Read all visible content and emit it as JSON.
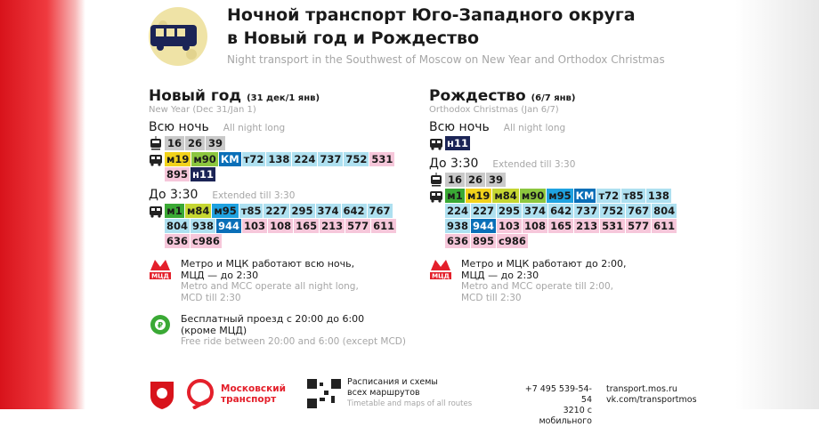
{
  "header": {
    "title_line1": "Ночной транспорт Юго-Западного округа",
    "title_line2": "в Новый год и Рождество",
    "subtitle": "Night transport in the Southwest of Moscow on New Year and Orthodox Christmas"
  },
  "columns": [
    {
      "title": "Новый год",
      "dates": "(31 дек/1 янв)",
      "title_en": "New Year (Dec 31/Jan 1)",
      "groups": [
        {
          "label": "Всю ночь",
          "label_en": "All night long",
          "rows": [
            {
              "mode": "tram",
              "lines": [
                [
                  {
                    "text": "16",
                    "color": "#c9c9c9"
                  },
                  {
                    "text": "26",
                    "color": "#c9c9c9"
                  },
                  {
                    "text": "39",
                    "color": "#c9c9c9"
                  }
                ]
              ]
            },
            {
              "mode": "bus",
              "lines": [
                [
                  {
                    "text": "м19",
                    "color": "#f2d21b"
                  },
                  {
                    "text": "м90",
                    "color": "#8cc63f"
                  },
                  {
                    "text": "КМ",
                    "color": "#0a6fb8"
                  },
                  {
                    "text": "т72",
                    "color": "#aee0f0"
                  },
                  {
                    "text": "138",
                    "color": "#aee0f0"
                  },
                  {
                    "text": "224",
                    "color": "#aee0f0"
                  },
                  {
                    "text": "737",
                    "color": "#aee0f0"
                  },
                  {
                    "text": "752",
                    "color": "#aee0f0"
                  },
                  {
                    "text": "531",
                    "color": "#f6c7da"
                  }
                ],
                [
                  {
                    "text": "895",
                    "color": "#f6c7da"
                  },
                  {
                    "text": "н11",
                    "color": "#1b2456"
                  }
                ]
              ]
            }
          ]
        },
        {
          "label": "До 3:30",
          "label_en": "Extended till 3:30",
          "rows": [
            {
              "mode": "bus",
              "lines": [
                [
                  {
                    "text": "м1",
                    "color": "#3aa935"
                  },
                  {
                    "text": "м84",
                    "color": "#c5d631"
                  },
                  {
                    "text": "м95",
                    "color": "#1fa2e0"
                  },
                  {
                    "text": "т85",
                    "color": "#aee0f0"
                  },
                  {
                    "text": "227",
                    "color": "#aee0f0"
                  },
                  {
                    "text": "295",
                    "color": "#aee0f0"
                  },
                  {
                    "text": "374",
                    "color": "#aee0f0"
                  },
                  {
                    "text": "642",
                    "color": "#aee0f0"
                  },
                  {
                    "text": "767",
                    "color": "#aee0f0"
                  }
                ],
                [
                  {
                    "text": "804",
                    "color": "#aee0f0"
                  },
                  {
                    "text": "938",
                    "color": "#aee0f0"
                  },
                  {
                    "text": "944",
                    "color": "#0a6fb8"
                  },
                  {
                    "text": "103",
                    "color": "#f6c7da"
                  },
                  {
                    "text": "108",
                    "color": "#f6c7da"
                  },
                  {
                    "text": "165",
                    "color": "#f6c7da"
                  },
                  {
                    "text": "213",
                    "color": "#f6c7da"
                  },
                  {
                    "text": "577",
                    "color": "#f6c7da"
                  },
                  {
                    "text": "611",
                    "color": "#f6c7da"
                  }
                ],
                [
                  {
                    "text": "636",
                    "color": "#f6c7da"
                  },
                  {
                    "text": "с986",
                    "color": "#f6c7da"
                  }
                ]
              ]
            }
          ]
        }
      ],
      "notes": [
        {
          "icon": "metro",
          "ru": [
            "Метро и МЦК работают всю ночь,",
            "МЦД — до 2:30"
          ],
          "en": [
            "Metro and MCC operate all night long,",
            "MCD till 2:30"
          ]
        },
        {
          "icon": "free",
          "ru": [
            "Бесплатный проезд с 20:00 до 6:00",
            "(кроме МЦД)"
          ],
          "en": [
            "Free ride between 20:00 and 6:00 (except MCD)"
          ]
        }
      ]
    },
    {
      "title": "Рождество",
      "dates": "(6/7 янв)",
      "title_en": "Orthodox Christmas (Jan 6/7)",
      "groups": [
        {
          "label": "Всю ночь",
          "label_en": "All night long",
          "rows": [
            {
              "mode": "bus",
              "lines": [
                [
                  {
                    "text": "н11",
                    "color": "#1b2456"
                  }
                ]
              ]
            }
          ]
        },
        {
          "label": "До 3:30",
          "label_en": "Extended till 3:30",
          "rows": [
            {
              "mode": "tram",
              "lines": [
                [
                  {
                    "text": "16",
                    "color": "#c9c9c9"
                  },
                  {
                    "text": "26",
                    "color": "#c9c9c9"
                  },
                  {
                    "text": "39",
                    "color": "#c9c9c9"
                  }
                ]
              ]
            },
            {
              "mode": "bus",
              "lines": [
                [
                  {
                    "text": "м1",
                    "color": "#3aa935"
                  },
                  {
                    "text": "м19",
                    "color": "#f2d21b"
                  },
                  {
                    "text": "м84",
                    "color": "#c5d631"
                  },
                  {
                    "text": "м90",
                    "color": "#8cc63f"
                  },
                  {
                    "text": "м95",
                    "color": "#1fa2e0"
                  },
                  {
                    "text": "КМ",
                    "color": "#0a6fb8"
                  },
                  {
                    "text": "т72",
                    "color": "#aee0f0"
                  },
                  {
                    "text": "т85",
                    "color": "#aee0f0"
                  },
                  {
                    "text": "138",
                    "color": "#aee0f0"
                  }
                ],
                [
                  {
                    "text": "224",
                    "color": "#aee0f0"
                  },
                  {
                    "text": "227",
                    "color": "#aee0f0"
                  },
                  {
                    "text": "295",
                    "color": "#aee0f0"
                  },
                  {
                    "text": "374",
                    "color": "#aee0f0"
                  },
                  {
                    "text": "642",
                    "color": "#aee0f0"
                  },
                  {
                    "text": "737",
                    "color": "#aee0f0"
                  },
                  {
                    "text": "752",
                    "color": "#aee0f0"
                  },
                  {
                    "text": "767",
                    "color": "#aee0f0"
                  },
                  {
                    "text": "804",
                    "color": "#aee0f0"
                  }
                ],
                [
                  {
                    "text": "938",
                    "color": "#aee0f0"
                  },
                  {
                    "text": "944",
                    "color": "#0a6fb8"
                  },
                  {
                    "text": "103",
                    "color": "#f6c7da"
                  },
                  {
                    "text": "108",
                    "color": "#f6c7da"
                  },
                  {
                    "text": "165",
                    "color": "#f6c7da"
                  },
                  {
                    "text": "213",
                    "color": "#f6c7da"
                  },
                  {
                    "text": "531",
                    "color": "#f6c7da"
                  },
                  {
                    "text": "577",
                    "color": "#f6c7da"
                  },
                  {
                    "text": "611",
                    "color": "#f6c7da"
                  }
                ],
                [
                  {
                    "text": "636",
                    "color": "#f6c7da"
                  },
                  {
                    "text": "895",
                    "color": "#f6c7da"
                  },
                  {
                    "text": "с986",
                    "color": "#f6c7da"
                  }
                ]
              ]
            }
          ]
        }
      ],
      "notes": [
        {
          "icon": "metro",
          "ru": [
            "Метро и МЦК работают до 2:00,",
            "МЦД — до 2:30"
          ],
          "en": [
            "Metro and MCC operate till 2:00,",
            "MCD till 2:30"
          ]
        }
      ]
    }
  ],
  "footer": {
    "brand_line1": "Московский",
    "brand_line2": "транспорт",
    "schedule_ru_line1": "Расписания и схемы",
    "schedule_ru_line2": "всех маршрутов",
    "schedule_en": "Timetable and maps of all routes",
    "phone": "+7 495 539-54-54",
    "mobile": "3210 с мобильного",
    "site": "transport.mos.ru",
    "vk": "vk.com/transportmos"
  }
}
